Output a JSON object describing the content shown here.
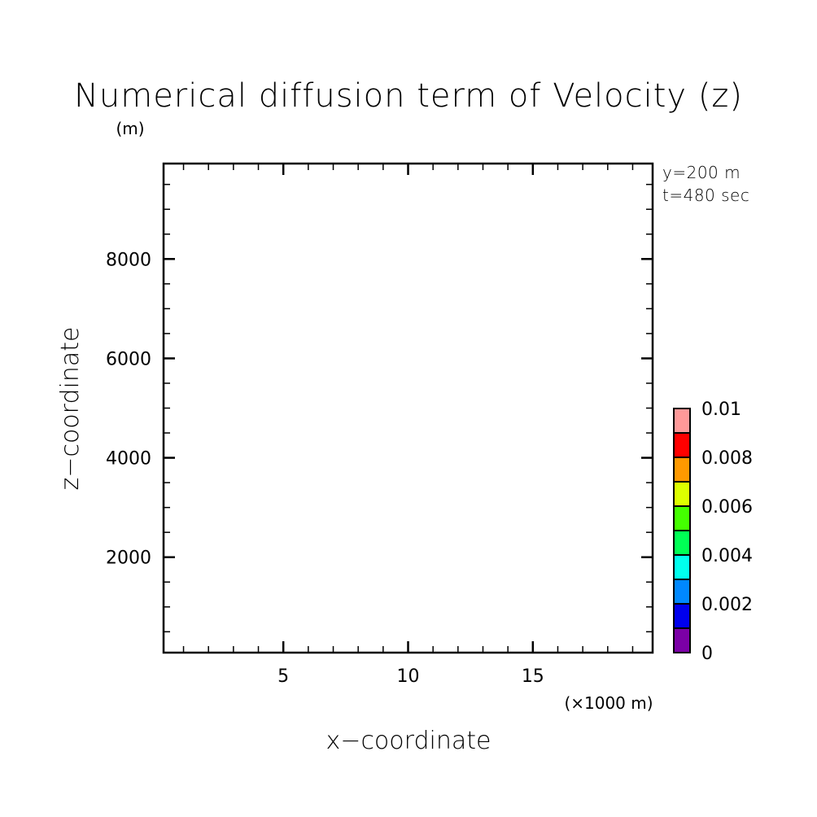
{
  "chart_data": {
    "type": "heatmap",
    "title": "Numerical diffusion term of Velocity (z)",
    "xlabel": "x−coordinate",
    "ylabel": "z−coordinate",
    "x_unit_label": "(×1000 m)",
    "y_unit_label": "(m)",
    "xlim": [
      0.2,
      19.8
    ],
    "ylim": [
      80,
      9920
    ],
    "x_ticks_major": [
      5,
      10,
      15
    ],
    "x_tick_labels": [
      "5",
      "10",
      "15"
    ],
    "x_ticks_minor_step": 1,
    "y_ticks_major": [
      2000,
      4000,
      6000,
      8000
    ],
    "y_tick_labels": [
      "2000",
      "4000",
      "6000",
      "8000"
    ],
    "y_ticks_minor_step": 500,
    "grid": false,
    "annotations": [
      "y=200 m",
      "t=480 sec"
    ],
    "data": [],
    "colorbar": {
      "placement": "right",
      "levels": [
        0,
        0.001,
        0.002,
        0.003,
        0.004,
        0.005,
        0.006,
        0.007,
        0.008,
        0.009,
        0.01
      ],
      "colors": [
        "#7b00a6",
        "#0000ee",
        "#0088ff",
        "#00ffee",
        "#00ff55",
        "#44ff00",
        "#ddff00",
        "#ff9900",
        "#ff0000",
        "#ff9999"
      ],
      "tick_values": [
        0,
        0.002,
        0.004,
        0.006,
        0.008,
        0.01
      ],
      "tick_labels": [
        "0",
        "0.002",
        "0.004",
        "0.006",
        "0.008",
        "0.01"
      ]
    }
  }
}
